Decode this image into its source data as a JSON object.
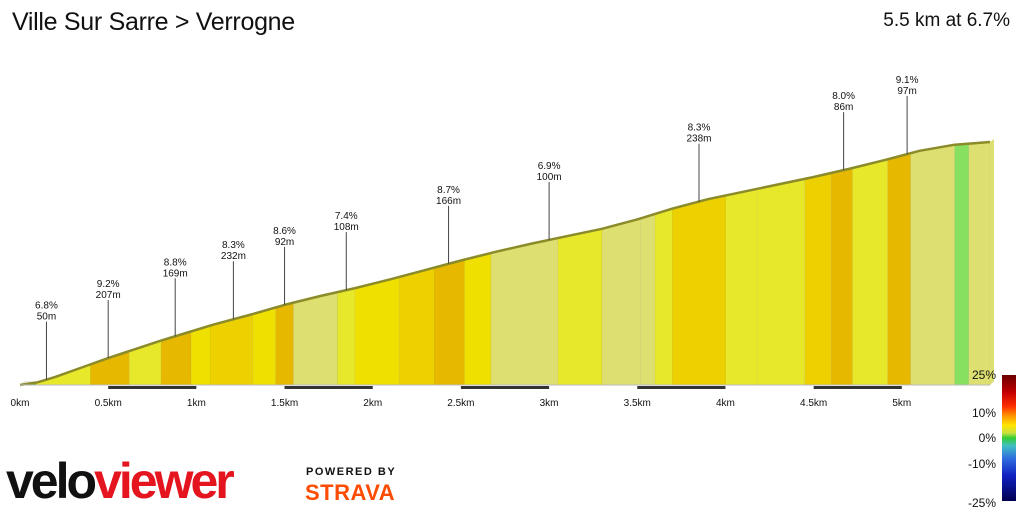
{
  "header": {
    "title": "Ville Sur Sarre > Verrogne",
    "summary": "5.5 km at 6.7%"
  },
  "colors": {
    "profile_line": "#8b8b2a",
    "shade_1": "#4cb848",
    "shade_2": "#88e060",
    "shade_3": "#dde070",
    "shade_4": "#e8e82a",
    "shade_5": "#f0e000",
    "shade_6": "#ecd000",
    "shade_7": "#e6b800",
    "ground": "#e6e6e6",
    "km_dark": "#333333"
  },
  "scale": {
    "labels": [
      "25%",
      "10%",
      "0%",
      "-10%",
      "-25%"
    ]
  },
  "branding": {
    "logo_text": "veloviewer",
    "powered_by": "POWERED BY",
    "strava": "STRAVA"
  },
  "chart_data": {
    "type": "area",
    "title": "Ville Sur Sarre > Verrogne",
    "x_unit": "km",
    "xlim": [
      0,
      5.5
    ],
    "x_ticks": [
      "0km",
      "0.5km",
      "1km",
      "1.5km",
      "2km",
      "2.5km",
      "3km",
      "3.5km",
      "4km",
      "4.5km",
      "5km"
    ],
    "gradient_scale_ticks": [
      "25%",
      "10%",
      "0%",
      "-10%",
      "-25%"
    ],
    "profile": {
      "distance_km": [
        0,
        0.1,
        0.2,
        0.35,
        0.5,
        0.65,
        0.8,
        0.95,
        1.1,
        1.3,
        1.5,
        1.7,
        1.9,
        2.1,
        2.3,
        2.5,
        2.7,
        2.9,
        3.1,
        3.3,
        3.5,
        3.7,
        3.9,
        4.1,
        4.3,
        4.5,
        4.7,
        4.9,
        5.1,
        5.3,
        5.5
      ],
      "relative_elevation_m": [
        0,
        4,
        12,
        26,
        40,
        53,
        66,
        78,
        90,
        104,
        119,
        132,
        144,
        157,
        171,
        185,
        198,
        210,
        221,
        232,
        246,
        262,
        276,
        287,
        298,
        309,
        321,
        334,
        348,
        357,
        361
      ],
      "gradient_bands": [
        {
          "from": 0.0,
          "to": 0.09,
          "shade": "shade_1"
        },
        {
          "from": 0.09,
          "to": 0.4,
          "shade": "shade_4"
        },
        {
          "from": 0.4,
          "to": 0.62,
          "shade": "shade_7"
        },
        {
          "from": 0.62,
          "to": 0.8,
          "shade": "shade_4"
        },
        {
          "from": 0.8,
          "to": 0.97,
          "shade": "shade_7"
        },
        {
          "from": 0.97,
          "to": 1.08,
          "shade": "shade_5"
        },
        {
          "from": 1.08,
          "to": 1.32,
          "shade": "shade_6"
        },
        {
          "from": 1.32,
          "to": 1.45,
          "shade": "shade_5"
        },
        {
          "from": 1.45,
          "to": 1.55,
          "shade": "shade_7"
        },
        {
          "from": 1.55,
          "to": 1.8,
          "shade": "shade_3"
        },
        {
          "from": 1.8,
          "to": 1.9,
          "shade": "shade_4"
        },
        {
          "from": 1.9,
          "to": 2.15,
          "shade": "shade_5"
        },
        {
          "from": 2.15,
          "to": 2.35,
          "shade": "shade_6"
        },
        {
          "from": 2.35,
          "to": 2.52,
          "shade": "shade_7"
        },
        {
          "from": 2.52,
          "to": 2.67,
          "shade": "shade_5"
        },
        {
          "from": 2.67,
          "to": 3.05,
          "shade": "shade_3"
        },
        {
          "from": 3.05,
          "to": 3.3,
          "shade": "shade_4"
        },
        {
          "from": 3.3,
          "to": 3.52,
          "shade": "shade_3"
        },
        {
          "from": 3.52,
          "to": 3.6,
          "shade": "shade_3"
        },
        {
          "from": 3.6,
          "to": 3.7,
          "shade": "shade_4"
        },
        {
          "from": 3.7,
          "to": 4.0,
          "shade": "shade_6"
        },
        {
          "from": 4.0,
          "to": 4.18,
          "shade": "shade_4"
        },
        {
          "from": 4.18,
          "to": 4.45,
          "shade": "shade_4"
        },
        {
          "from": 4.45,
          "to": 4.6,
          "shade": "shade_6"
        },
        {
          "from": 4.6,
          "to": 4.72,
          "shade": "shade_7"
        },
        {
          "from": 4.72,
          "to": 4.92,
          "shade": "shade_4"
        },
        {
          "from": 4.92,
          "to": 5.05,
          "shade": "shade_7"
        },
        {
          "from": 5.05,
          "to": 5.3,
          "shade": "shade_3"
        },
        {
          "from": 5.3,
          "to": 5.38,
          "shade": "shade_2"
        },
        {
          "from": 5.38,
          "to": 5.5,
          "shade": "shade_3"
        }
      ]
    },
    "segment_annotations": [
      {
        "gradient": "6.8%",
        "length": "50m",
        "at_km": 0.15
      },
      {
        "gradient": "9.2%",
        "length": "207m",
        "at_km": 0.5
      },
      {
        "gradient": "8.8%",
        "length": "169m",
        "at_km": 0.88
      },
      {
        "gradient": "8.3%",
        "length": "232m",
        "at_km": 1.21
      },
      {
        "gradient": "8.6%",
        "length": "92m",
        "at_km": 1.5
      },
      {
        "gradient": "7.4%",
        "length": "108m",
        "at_km": 1.85
      },
      {
        "gradient": "8.7%",
        "length": "166m",
        "at_km": 2.43
      },
      {
        "gradient": "6.9%",
        "length": "100m",
        "at_km": 3.0
      },
      {
        "gradient": "8.3%",
        "length": "238m",
        "at_km": 3.85
      },
      {
        "gradient": "8.0%",
        "length": "86m",
        "at_km": 4.67
      },
      {
        "gradient": "9.1%",
        "length": "97m",
        "at_km": 5.03
      }
    ]
  }
}
